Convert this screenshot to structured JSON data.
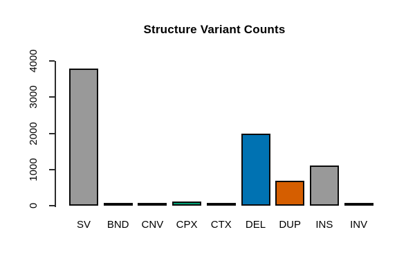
{
  "chart_data": {
    "type": "bar",
    "title": "Structure Variant Counts",
    "categories": [
      "SV",
      "BND",
      "CNV",
      "CPX",
      "CTX",
      "DEL",
      "DUP",
      "INS",
      "INV"
    ],
    "values": [
      3750,
      10,
      30,
      75,
      10,
      1950,
      650,
      1080,
      20
    ],
    "bar_colors": [
      "#999999",
      "#999999",
      "#999999",
      "#009E73",
      "#999999",
      "#0072B2",
      "#D55E00",
      "#999999",
      "#999999"
    ],
    "bar_border_color": "#0a0a0a",
    "axis_color": "#2b2b2b",
    "xlabel": "",
    "ylabel": "",
    "ylim": [
      0,
      4000
    ],
    "yticks": [
      0,
      1000,
      2000,
      3000,
      4000
    ],
    "grid": false,
    "legend": false
  }
}
